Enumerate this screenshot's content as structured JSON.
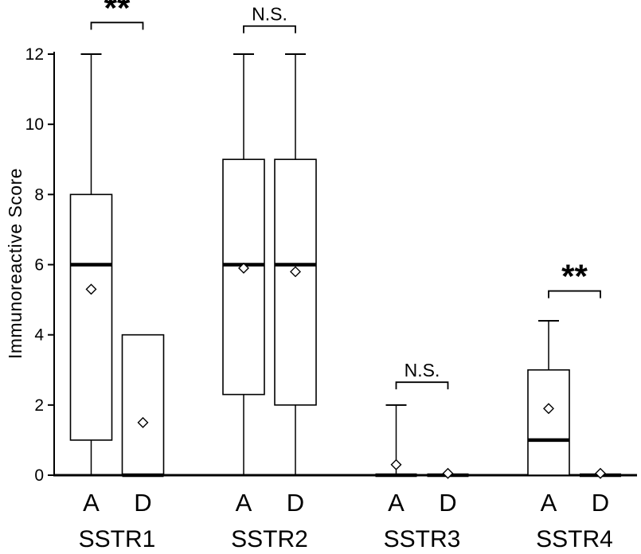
{
  "chart_data": {
    "type": "boxplot",
    "title": "",
    "xlabel": "",
    "ylabel": "Immunoreactive Score",
    "ylim": [
      0,
      12
    ],
    "yticks": [
      0,
      2,
      4,
      6,
      8,
      10,
      12
    ],
    "grid": false,
    "legend": false,
    "colors": {
      "stroke": "#000000",
      "box_fill": "#ffffff",
      "background": "#ffffff"
    },
    "groups": [
      {
        "label": "SSTR1",
        "significance": {
          "label": "**",
          "y": 12.9
        },
        "boxes": [
          {
            "label": "A",
            "whisker_low": 0,
            "q1": 1,
            "median": 6,
            "q3": 8,
            "whisker_high": 12,
            "mean": 5.3
          },
          {
            "label": "D",
            "whisker_low": 0,
            "q1": 0,
            "median": 0,
            "q3": 4,
            "whisker_high": 4,
            "mean": 1.5
          }
        ]
      },
      {
        "label": "SSTR2",
        "significance": {
          "label": "N.S.",
          "y": 12.8
        },
        "boxes": [
          {
            "label": "A",
            "whisker_low": 0,
            "q1": 2.3,
            "median": 6,
            "q3": 9,
            "whisker_high": 12,
            "mean": 5.9
          },
          {
            "label": "D",
            "whisker_low": 0,
            "q1": 2,
            "median": 6,
            "q3": 9,
            "whisker_high": 12,
            "mean": 5.8
          }
        ]
      },
      {
        "label": "SSTR3",
        "significance": {
          "label": "N.S.",
          "y": 2.65
        },
        "boxes": [
          {
            "label": "A",
            "whisker_low": 0,
            "q1": 0,
            "median": 0,
            "q3": 0,
            "whisker_high": 2,
            "mean": 0.3
          },
          {
            "label": "D",
            "whisker_low": 0,
            "q1": 0,
            "median": 0,
            "q3": 0,
            "whisker_high": 0,
            "mean": 0.05
          }
        ]
      },
      {
        "label": "SSTR4",
        "significance": {
          "label": "**",
          "y": 5.25
        },
        "boxes": [
          {
            "label": "A",
            "whisker_low": 0,
            "q1": 0,
            "median": 1,
            "q3": 3,
            "whisker_high": 4.4,
            "mean": 1.9
          },
          {
            "label": "D",
            "whisker_low": 0,
            "q1": 0,
            "median": 0,
            "q3": 0,
            "whisker_high": 0,
            "mean": 0.05
          }
        ]
      }
    ]
  }
}
